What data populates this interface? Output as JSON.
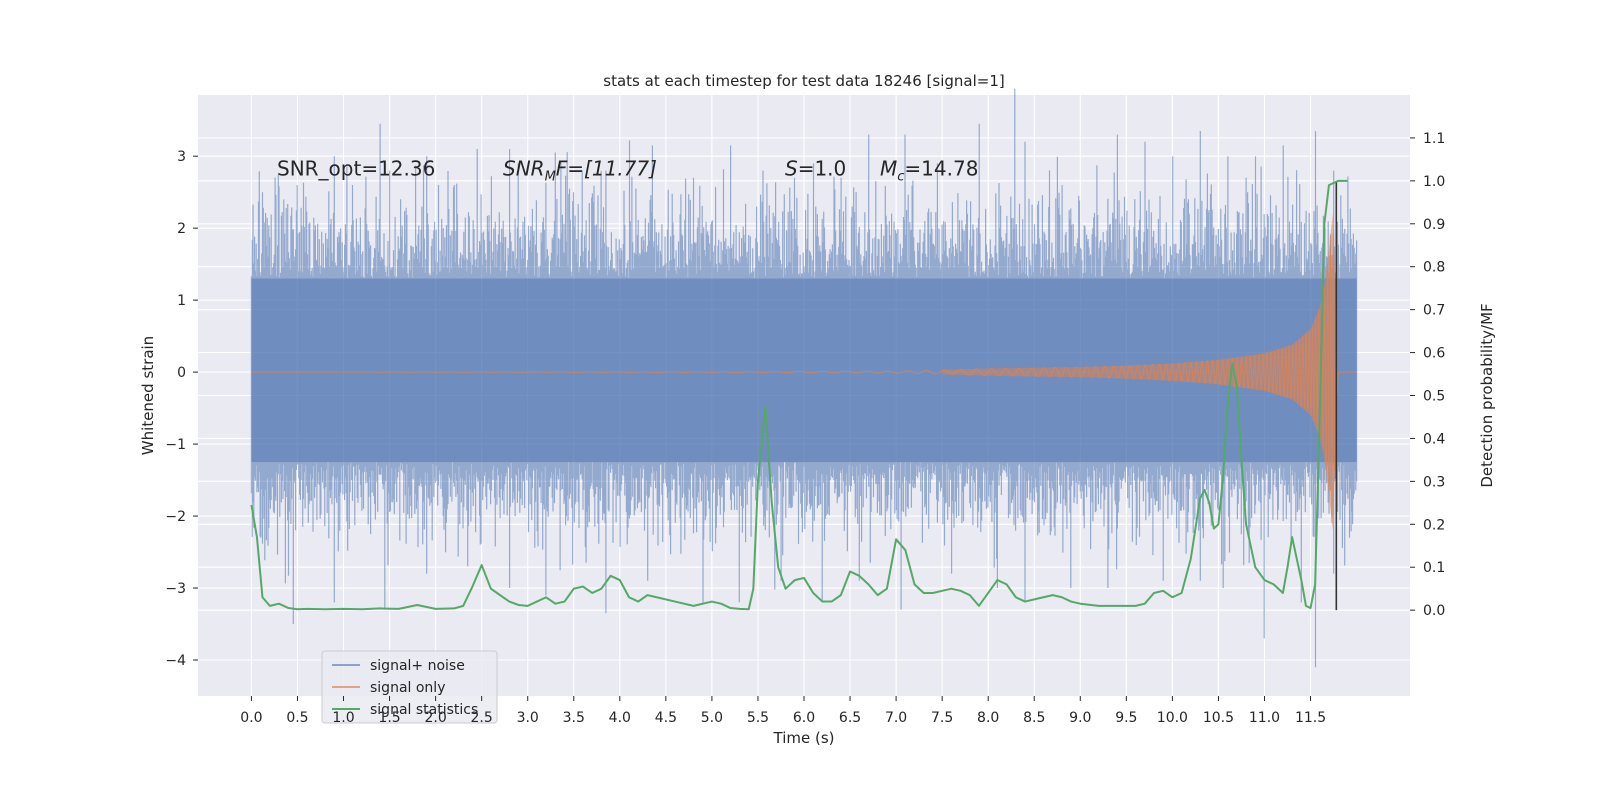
{
  "chart_data": {
    "type": "line",
    "title": "stats at each timestep for test data 18246 [signal=1]",
    "xlabel": "Time (s)",
    "ylabel": "Whitened strain",
    "ylabel_right": "Detection probability/MF",
    "xlim": [
      -0.58,
      12.58
    ],
    "ylim": [
      -4.5,
      3.85
    ],
    "ylim_right": [
      -0.2,
      1.2
    ],
    "xticks": [
      "0.0",
      "0.5",
      "1.0",
      "1.5",
      "2.0",
      "2.5",
      "3.0",
      "3.5",
      "4.0",
      "4.5",
      "5.0",
      "5.5",
      "6.0",
      "6.5",
      "7.0",
      "7.5",
      "8.0",
      "8.5",
      "9.0",
      "9.5",
      "10.0",
      "10.5",
      "11.0",
      "11.5"
    ],
    "yticks": [
      "3",
      "2",
      "1",
      "0",
      "−1",
      "−2",
      "−3",
      "−4"
    ],
    "yticks_values": [
      3,
      2,
      1,
      0,
      -1,
      -2,
      -3,
      -4
    ],
    "yticks_right": [
      "1.1",
      "1.0",
      "0.9",
      "0.8",
      "0.7",
      "0.6",
      "0.5",
      "0.4",
      "0.3",
      "0.2",
      "0.1",
      "0.0"
    ],
    "yticks_right_values": [
      1.1,
      1.0,
      0.9,
      0.8,
      0.7,
      0.6,
      0.5,
      0.4,
      0.3,
      0.2,
      0.1,
      0.0
    ],
    "grid": true,
    "legend_position": "lower left",
    "annotations": {
      "snr_opt": "SNR_opt=12.36",
      "snr_mf_base": "SNR",
      "snr_mf_sub": "M",
      "snr_mf_rest": "F=[11.77]",
      "s_var": "S",
      "s_rest": "=1.0",
      "mc_var": "M",
      "mc_sub": "c",
      "mc_rest": "=14.78"
    },
    "series": [
      {
        "name": "signal+ noise",
        "color": "#4c72b0",
        "alpha": 0.5,
        "description_range": [
          0.0,
          12.0
        ],
        "envelope_typical_max": 2.0,
        "envelope_typical_min": -1.9,
        "extreme_peaks": [
          [
            0.12,
            2.5
          ],
          [
            0.5,
            2.6
          ],
          [
            0.9,
            3.0
          ],
          [
            1.1,
            2.6
          ],
          [
            1.4,
            3.45
          ],
          [
            1.5,
            2.8
          ],
          [
            1.9,
            3.0
          ],
          [
            2.2,
            2.6
          ],
          [
            2.45,
            3.1
          ],
          [
            2.9,
            2.9
          ],
          [
            3.3,
            3.05
          ],
          [
            3.5,
            2.5
          ],
          [
            3.85,
            2.8
          ],
          [
            4.35,
            3.15
          ],
          [
            4.8,
            2.7
          ],
          [
            5.2,
            3.15
          ],
          [
            5.55,
            2.8
          ],
          [
            5.9,
            2.7
          ],
          [
            6.1,
            2.9
          ],
          [
            6.4,
            2.7
          ],
          [
            6.7,
            3.3
          ],
          [
            7.1,
            3.3
          ],
          [
            7.45,
            2.9
          ],
          [
            7.9,
            3.45
          ],
          [
            8.4,
            3.2
          ],
          [
            8.8,
            2.6
          ],
          [
            9.4,
            3.3
          ],
          [
            9.7,
            3.2
          ],
          [
            10.0,
            3.0
          ],
          [
            10.3,
            3.35
          ],
          [
            10.6,
            3.0
          ],
          [
            10.9,
            3.0
          ],
          [
            11.2,
            3.15
          ],
          [
            11.55,
            3.35
          ],
          [
            11.75,
            2.8
          ]
        ],
        "extreme_troughs": [
          [
            0.1,
            -2.3
          ],
          [
            0.45,
            -3.5
          ],
          [
            0.9,
            -3.2
          ],
          [
            1.45,
            -3.3
          ],
          [
            1.9,
            -2.8
          ],
          [
            2.35,
            -2.7
          ],
          [
            2.8,
            -3.0
          ],
          [
            3.2,
            -3.1
          ],
          [
            3.85,
            -3.35
          ],
          [
            4.3,
            -2.9
          ],
          [
            4.9,
            -3.2
          ],
          [
            5.3,
            -3.2
          ],
          [
            5.75,
            -2.9
          ],
          [
            6.2,
            -3.2
          ],
          [
            6.6,
            -2.9
          ],
          [
            7.05,
            -3.3
          ],
          [
            7.6,
            -2.8
          ],
          [
            8.1,
            -3.0
          ],
          [
            8.4,
            -3.2
          ],
          [
            8.9,
            -3.0
          ],
          [
            9.3,
            -3.0
          ],
          [
            9.9,
            -2.9
          ],
          [
            10.3,
            -2.9
          ],
          [
            10.55,
            -3.0
          ],
          [
            11.0,
            -3.7
          ],
          [
            11.4,
            -3.2
          ],
          [
            11.55,
            -4.1
          ],
          [
            11.75,
            -2.8
          ]
        ]
      },
      {
        "name": "signal only",
        "color": "#dd8452",
        "alpha": 0.6,
        "description": "chirp waveform, near-zero amplitude until ~7.5 s, growing to ~±2 near 11.8 s then ending",
        "envelope": [
          [
            0.0,
            0.0
          ],
          [
            5.5,
            0.005
          ],
          [
            7.0,
            0.015
          ],
          [
            7.5,
            0.03
          ],
          [
            8.0,
            0.05
          ],
          [
            8.5,
            0.06
          ],
          [
            9.0,
            0.07
          ],
          [
            9.5,
            0.09
          ],
          [
            10.0,
            0.12
          ],
          [
            10.5,
            0.17
          ],
          [
            11.0,
            0.26
          ],
          [
            11.3,
            0.38
          ],
          [
            11.5,
            0.6
          ],
          [
            11.6,
            0.9
          ],
          [
            11.65,
            1.2
          ],
          [
            11.7,
            1.7
          ],
          [
            11.74,
            2.2
          ],
          [
            11.77,
            1.2
          ],
          [
            11.8,
            0.0
          ],
          [
            12.0,
            0.0
          ]
        ]
      },
      {
        "name": "signal statistics",
        "color": "#55a868",
        "axis": "right",
        "x": [
          0.0,
          0.06,
          0.12,
          0.2,
          0.3,
          0.4,
          0.5,
          0.6,
          0.8,
          1.0,
          1.2,
          1.4,
          1.6,
          1.8,
          2.0,
          2.2,
          2.3,
          2.4,
          2.5,
          2.6,
          2.7,
          2.8,
          2.9,
          3.0,
          3.1,
          3.2,
          3.3,
          3.4,
          3.5,
          3.6,
          3.7,
          3.8,
          3.9,
          4.0,
          4.1,
          4.2,
          4.3,
          4.4,
          4.6,
          4.8,
          5.0,
          5.1,
          5.2,
          5.3,
          5.4,
          5.45,
          5.5,
          5.58,
          5.65,
          5.72,
          5.8,
          5.9,
          6.0,
          6.1,
          6.2,
          6.3,
          6.4,
          6.5,
          6.6,
          6.7,
          6.8,
          6.9,
          7.0,
          7.1,
          7.2,
          7.3,
          7.4,
          7.5,
          7.6,
          7.7,
          7.8,
          7.9,
          8.0,
          8.1,
          8.2,
          8.3,
          8.4,
          8.5,
          8.6,
          8.7,
          8.8,
          8.9,
          9.0,
          9.2,
          9.4,
          9.6,
          9.7,
          9.8,
          9.9,
          10.0,
          10.1,
          10.2,
          10.3,
          10.35,
          10.4,
          10.45,
          10.5,
          10.55,
          10.6,
          10.65,
          10.7,
          10.75,
          10.8,
          10.9,
          11.0,
          11.1,
          11.2,
          11.25,
          11.3,
          11.4,
          11.45,
          11.5,
          11.55,
          11.6,
          11.65,
          11.7,
          11.75,
          11.8,
          11.85,
          11.9
        ],
        "values": [
          0.245,
          0.17,
          0.03,
          0.01,
          0.015,
          0.005,
          0.002,
          0.003,
          0.002,
          0.003,
          0.002,
          0.004,
          0.003,
          0.012,
          0.003,
          0.004,
          0.01,
          0.055,
          0.105,
          0.05,
          0.035,
          0.02,
          0.012,
          0.01,
          0.02,
          0.03,
          0.015,
          0.02,
          0.05,
          0.055,
          0.04,
          0.05,
          0.08,
          0.07,
          0.03,
          0.02,
          0.035,
          0.03,
          0.02,
          0.01,
          0.02,
          0.015,
          0.005,
          0.003,
          0.002,
          0.05,
          0.3,
          0.475,
          0.25,
          0.1,
          0.05,
          0.07,
          0.075,
          0.04,
          0.02,
          0.02,
          0.035,
          0.09,
          0.08,
          0.06,
          0.035,
          0.05,
          0.165,
          0.14,
          0.06,
          0.04,
          0.04,
          0.045,
          0.05,
          0.045,
          0.035,
          0.01,
          0.04,
          0.07,
          0.06,
          0.03,
          0.02,
          0.025,
          0.03,
          0.035,
          0.03,
          0.02,
          0.015,
          0.01,
          0.01,
          0.01,
          0.015,
          0.04,
          0.045,
          0.03,
          0.04,
          0.12,
          0.26,
          0.28,
          0.25,
          0.19,
          0.2,
          0.31,
          0.48,
          0.575,
          0.52,
          0.35,
          0.2,
          0.1,
          0.07,
          0.06,
          0.04,
          0.1,
          0.17,
          0.07,
          0.01,
          0.005,
          0.06,
          0.45,
          0.9,
          0.99,
          0.995,
          1.0,
          1.0,
          1.0
        ]
      }
    ],
    "vertical_marker": {
      "x": 11.78,
      "color": "#333333",
      "y_range_right": [
        0.0,
        1.0
      ]
    }
  }
}
